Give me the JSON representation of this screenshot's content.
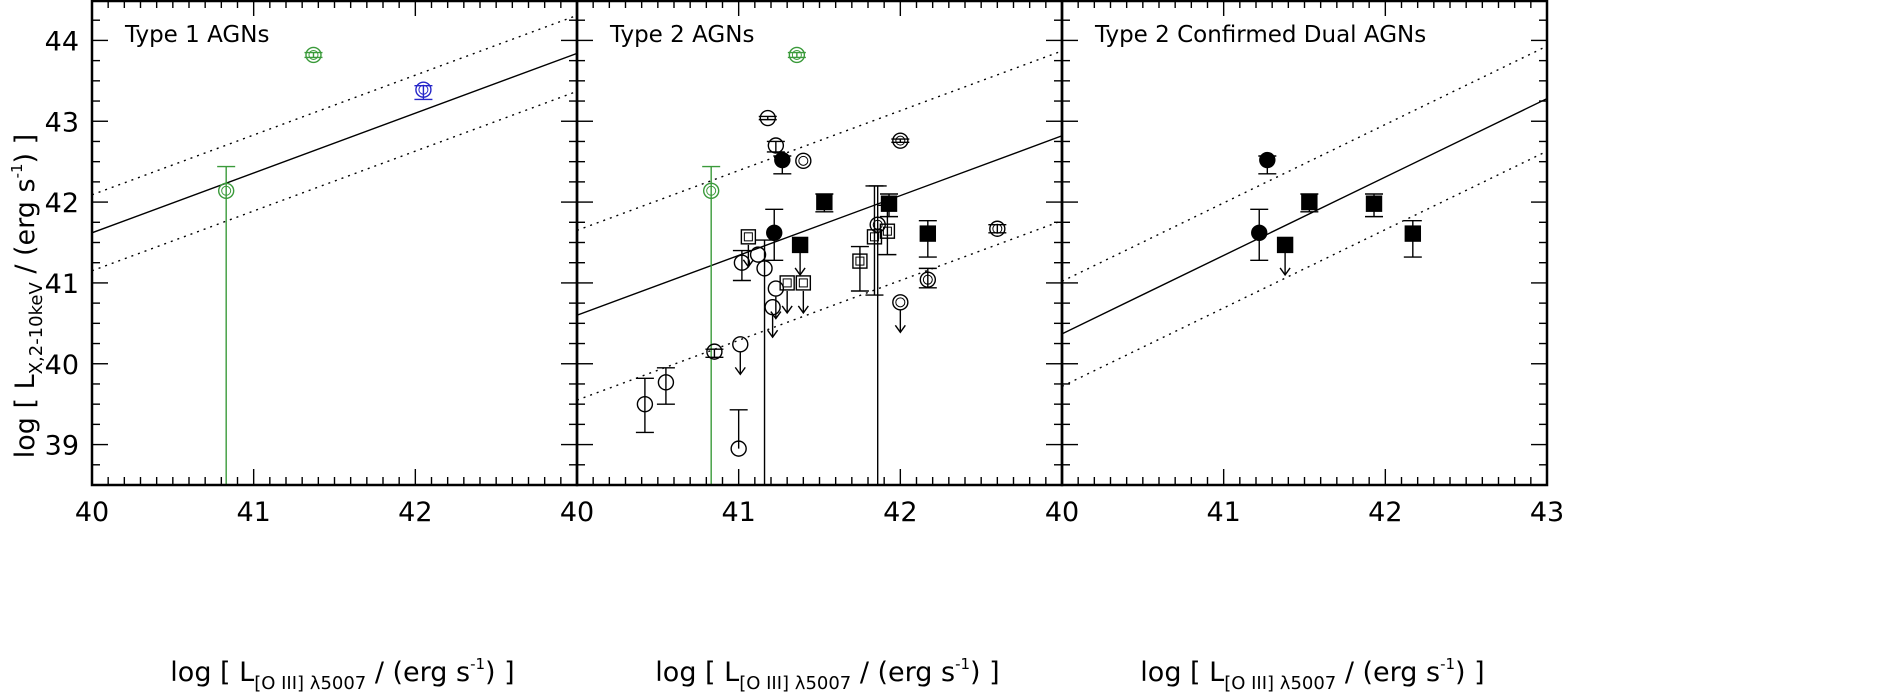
{
  "chart_data": {
    "type": "scatter",
    "ylabel": {
      "prefix": "log [ L",
      "sub": "X,2-10keV",
      "middle": " / (erg s",
      "sup": "-1",
      "suffix": ") ]"
    },
    "xlabel": {
      "prefix": "log [ L",
      "sub": "[O III] λ5007",
      "middle": " / (erg s",
      "sup": "-1",
      "suffix": ") ]"
    },
    "xlim": [
      40,
      43
    ],
    "ylim": [
      38.5,
      44.5
    ],
    "y_ticks": [
      "39",
      "40",
      "41",
      "42",
      "43",
      "44"
    ],
    "colors": {
      "axis": "#000000",
      "green": "#3a9a3a",
      "blue": "#2525c8",
      "black": "#000000"
    },
    "panels": [
      {
        "title": "Type 1 AGNs",
        "x_ticks": [
          "40",
          "41",
          "42"
        ],
        "relation": {
          "slope": 0.74,
          "intercept": 41.62,
          "scatter": 0.47
        },
        "points": [
          {
            "x": 40.83,
            "y": 42.14,
            "marker": "open-circle-dot",
            "color": "green",
            "err_lo": 3.7,
            "err_hi": 0.3
          },
          {
            "x": 41.37,
            "y": 43.82,
            "marker": "open-circle-dot",
            "color": "green",
            "err_lo": 0.03,
            "err_hi": 0.03
          },
          {
            "x": 42.05,
            "y": 43.39,
            "marker": "open-circle-dot",
            "color": "blue",
            "err_lo": 0.12,
            "err_hi": 0.05
          }
        ]
      },
      {
        "title": "Type 2 AGNs",
        "x_ticks": [
          "40",
          "41",
          "42"
        ],
        "relation": {
          "slope": 0.74,
          "intercept": 40.6,
          "scatter": 1.05
        },
        "points": [
          {
            "x": 40.83,
            "y": 42.14,
            "marker": "open-circle-dot",
            "color": "green",
            "err_lo": 3.7,
            "err_hi": 0.3
          },
          {
            "x": 41.36,
            "y": 43.82,
            "marker": "open-circle-dot",
            "color": "green",
            "err_lo": 0.03,
            "err_hi": 0.03
          },
          {
            "x": 41.18,
            "y": 43.04,
            "marker": "open-circle",
            "color": "black",
            "err_lo": 0.02,
            "err_hi": 0.02
          },
          {
            "x": 41.23,
            "y": 42.7,
            "marker": "open-circle",
            "color": "black",
            "err_lo": 0.08,
            "err_hi": 0.05
          },
          {
            "x": 41.27,
            "y": 42.52,
            "marker": "filled-circle",
            "color": "black",
            "err_lo": 0.17,
            "err_hi": 0.05
          },
          {
            "x": 41.4,
            "y": 42.51,
            "marker": "open-circle-dot",
            "color": "black"
          },
          {
            "x": 42.0,
            "y": 42.76,
            "marker": "open-circle-dot",
            "color": "black",
            "err_lo": 0.02,
            "err_hi": 0.02
          },
          {
            "x": 41.53,
            "y": 42.0,
            "marker": "filled-square",
            "color": "black",
            "err_lo": 0.12,
            "err_hi": 0.1
          },
          {
            "x": 41.93,
            "y": 41.98,
            "marker": "filled-square",
            "color": "black",
            "err_lo": 0.16,
            "err_hi": 0.12
          },
          {
            "x": 41.22,
            "y": 41.62,
            "marker": "filled-circle",
            "color": "black",
            "err_lo": 0.34,
            "err_hi": 0.29
          },
          {
            "x": 41.38,
            "y": 41.47,
            "marker": "filled-square",
            "color": "black",
            "upper_limit": true
          },
          {
            "x": 42.17,
            "y": 41.61,
            "marker": "filled-square",
            "color": "black",
            "err_lo": 0.29,
            "err_hi": 0.16
          },
          {
            "x": 41.06,
            "y": 41.57,
            "marker": "open-square",
            "color": "black",
            "upper_limit": true
          },
          {
            "x": 41.16,
            "y": 41.18,
            "marker": "open-circle",
            "color": "black",
            "err_lo": 3.0,
            "err_hi": 0.35
          },
          {
            "x": 41.02,
            "y": 41.25,
            "marker": "open-circle",
            "color": "black",
            "err_lo": 0.22,
            "err_hi": 0.15
          },
          {
            "x": 41.12,
            "y": 41.35,
            "marker": "open-circle",
            "color": "black"
          },
          {
            "x": 41.23,
            "y": 40.93,
            "marker": "open-circle",
            "color": "black",
            "upper_limit": true
          },
          {
            "x": 41.21,
            "y": 40.7,
            "marker": "open-circle",
            "color": "black",
            "upper_limit": true
          },
          {
            "x": 41.3,
            "y": 41.0,
            "marker": "open-square-dot",
            "color": "black",
            "upper_limit": true
          },
          {
            "x": 41.4,
            "y": 41.0,
            "marker": "open-square",
            "color": "black",
            "upper_limit": true
          },
          {
            "x": 41.75,
            "y": 41.27,
            "marker": "open-square-dot",
            "color": "black",
            "err_lo": 0.37,
            "err_hi": 0.18
          },
          {
            "x": 41.84,
            "y": 41.57,
            "marker": "open-square",
            "color": "black",
            "err_lo": 0.72,
            "err_hi": 0.63
          },
          {
            "x": 41.86,
            "y": 41.72,
            "marker": "open-circle-dot",
            "color": "black",
            "err_lo": 3.5,
            "err_hi": 0.48
          },
          {
            "x": 41.92,
            "y": 41.64,
            "marker": "open-square-dot",
            "color": "black",
            "err_lo": 0.29,
            "err_hi": 0.32
          },
          {
            "x": 42.17,
            "y": 41.04,
            "marker": "open-circle-dot",
            "color": "black",
            "err_lo": 0.1,
            "err_hi": 0.14
          },
          {
            "x": 42.0,
            "y": 40.76,
            "marker": "open-circle-dot",
            "color": "black",
            "upper_limit": true
          },
          {
            "x": 42.6,
            "y": 41.67,
            "marker": "open-circle-dot",
            "color": "black",
            "err_lo": 0.05,
            "err_hi": 0.05
          },
          {
            "x": 40.85,
            "y": 40.15,
            "marker": "open-circle",
            "color": "black",
            "err_lo": 0.07,
            "err_hi": 0.03
          },
          {
            "x": 41.01,
            "y": 40.24,
            "marker": "open-circle",
            "color": "black",
            "upper_limit": true
          },
          {
            "x": 40.42,
            "y": 39.5,
            "marker": "open-circle",
            "color": "black",
            "err_lo": 0.35,
            "err_hi": 0.32
          },
          {
            "x": 40.55,
            "y": 39.77,
            "marker": "open-circle",
            "color": "black",
            "err_lo": 0.27,
            "err_hi": 0.18
          },
          {
            "x": 41.0,
            "y": 38.95,
            "marker": "open-circle",
            "color": "black",
            "err_lo": 0.0,
            "err_hi": 0.48
          }
        ]
      },
      {
        "title": "Type 2 Confirmed Dual AGNs",
        "x_ticks": [
          "40",
          "41",
          "42",
          "43"
        ],
        "relation": {
          "slope": 0.97,
          "intercept": 40.37,
          "scatter": 0.65
        },
        "points": [
          {
            "x": 41.27,
            "y": 42.52,
            "marker": "filled-circle",
            "color": "black",
            "err_lo": 0.17,
            "err_hi": 0.05
          },
          {
            "x": 41.53,
            "y": 42.0,
            "marker": "filled-square",
            "color": "black",
            "err_lo": 0.12,
            "err_hi": 0.1
          },
          {
            "x": 41.93,
            "y": 41.98,
            "marker": "filled-square",
            "color": "black",
            "err_lo": 0.16,
            "err_hi": 0.12
          },
          {
            "x": 41.22,
            "y": 41.62,
            "marker": "filled-circle",
            "color": "black",
            "err_lo": 0.34,
            "err_hi": 0.29
          },
          {
            "x": 41.38,
            "y": 41.47,
            "marker": "filled-square",
            "color": "black",
            "upper_limit": true
          },
          {
            "x": 42.17,
            "y": 41.61,
            "marker": "filled-square",
            "color": "black",
            "err_lo": 0.29,
            "err_hi": 0.16
          }
        ]
      }
    ]
  }
}
